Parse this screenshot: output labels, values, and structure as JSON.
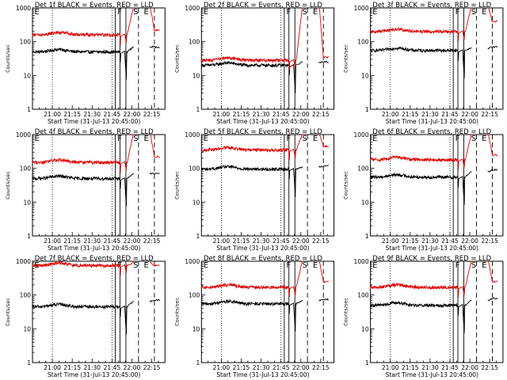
{
  "colors": {
    "events": "#000000",
    "lld": "#e00000",
    "axes": "#000000"
  },
  "chart_data": [
    {
      "type": "line",
      "title": "Det 1f BLACK = Events, RED = LLD",
      "xlabel": "Start Time (31-Jul-13 20:45:00)",
      "ylabel": "Counts/sec",
      "yscale": "log",
      "ylim": [
        1,
        1000
      ],
      "ytick_labels": [
        "1",
        "10",
        "100",
        "1000"
      ],
      "xtick_labels": [
        "21:00",
        "21:15",
        "21:30",
        "21:45",
        "22:00",
        "22:15"
      ],
      "markers": [
        "E",
        "F",
        "S",
        "E"
      ],
      "series": [
        {
          "name": "Events",
          "level": 50,
          "ramp_level": 70,
          "recover_level": 70
        },
        {
          "name": "LLD",
          "level": 160,
          "ramp_level": 1000,
          "recover_level": 220
        }
      ]
    },
    {
      "type": "line",
      "title": "Det 2f BLACK = Events, RED = LLD",
      "xlabel": "Start Time (31-Jul-13 20:45:00)",
      "ylabel": "Counts/sec",
      "yscale": "log",
      "ylim": [
        1,
        1000
      ],
      "ytick_labels": [
        "1",
        "10",
        "100",
        "1000"
      ],
      "xtick_labels": [
        "21:00",
        "21:15",
        "21:30",
        "21:45",
        "22:00",
        "22:15"
      ],
      "markers": [
        "E",
        "F",
        "S",
        "E"
      ],
      "series": [
        {
          "name": "Events",
          "level": 20,
          "ramp_level": 25,
          "recover_level": 25
        },
        {
          "name": "LLD",
          "level": 28,
          "ramp_level": 1000,
          "recover_level": 35
        }
      ]
    },
    {
      "type": "line",
      "title": "Det 3f BLACK = Events, RED = LLD",
      "xlabel": "Start Time (31-Jul-13 20:45:00)",
      "ylabel": "Counts/sec",
      "yscale": "log",
      "ylim": [
        1,
        1000
      ],
      "ytick_labels": [
        "1",
        "10",
        "100",
        "1000"
      ],
      "xtick_labels": [
        "21:00",
        "21:15",
        "21:30",
        "21:45",
        "22:00",
        "22:15"
      ],
      "markers": [
        "E",
        "F",
        "S",
        "E"
      ],
      "series": [
        {
          "name": "Events",
          "level": 55,
          "ramp_level": 65,
          "recover_level": 70
        },
        {
          "name": "LLD",
          "level": 200,
          "ramp_level": 1000,
          "recover_level": 400
        }
      ]
    },
    {
      "type": "line",
      "title": "Det 4f BLACK = Events, RED = LLD",
      "xlabel": "Start Time (31-Jul-13 20:45:00)",
      "ylabel": "Counts/sec",
      "yscale": "log",
      "ylim": [
        1,
        1000
      ],
      "ytick_labels": [
        "1",
        "10",
        "100",
        "1000"
      ],
      "xtick_labels": [
        "21:00",
        "21:15",
        "21:30",
        "21:45",
        "22:00",
        "22:15"
      ],
      "markers": [
        "E",
        "F",
        "S",
        "E"
      ],
      "series": [
        {
          "name": "Events",
          "level": 50,
          "ramp_level": 70,
          "recover_level": 70
        },
        {
          "name": "LLD",
          "level": 150,
          "ramp_level": 1000,
          "recover_level": 220
        }
      ]
    },
    {
      "type": "line",
      "title": "Det 5f BLACK = Events, RED = LLD",
      "xlabel": "Start Time (31-Jul-13 20:45:00)",
      "ylabel": "Counts/sec",
      "yscale": "log",
      "ylim": [
        1,
        1000
      ],
      "ytick_labels": [
        "1",
        "10",
        "100",
        "1000"
      ],
      "xtick_labels": [
        "21:00",
        "21:15",
        "21:30",
        "21:45",
        "22:00",
        "22:15"
      ],
      "markers": [
        "E",
        "F",
        "S",
        "E"
      ],
      "series": [
        {
          "name": "Events",
          "level": 95,
          "ramp_level": 110,
          "recover_level": 120
        },
        {
          "name": "LLD",
          "level": 350,
          "ramp_level": 1000,
          "recover_level": 450
        }
      ]
    },
    {
      "type": "line",
      "title": "Det 6f BLACK = Events, RED = LLD",
      "xlabel": "Start Time (31-Jul-13 20:45:00)",
      "ylabel": "Counts/sec",
      "yscale": "log",
      "ylim": [
        1,
        1000
      ],
      "ytick_labels": [
        "1",
        "10",
        "100",
        "1000"
      ],
      "xtick_labels": [
        "21:00",
        "21:15",
        "21:30",
        "21:45",
        "22:00",
        "22:15"
      ],
      "markers": [
        "E",
        "F",
        "S",
        "E"
      ],
      "series": [
        {
          "name": "Events",
          "level": 55,
          "ramp_level": 80,
          "recover_level": 90
        },
        {
          "name": "LLD",
          "level": 180,
          "ramp_level": 1000,
          "recover_level": 250
        }
      ]
    },
    {
      "type": "line",
      "title": "Det 7f BLACK = Events, RED = LLD",
      "xlabel": "Start Time (31-Jul-13 20:45:00)",
      "ylabel": "Counts/sec",
      "yscale": "log",
      "ylim": [
        1,
        1000
      ],
      "ytick_labels": [
        "1",
        "10",
        "100",
        "1000"
      ],
      "xtick_labels": [
        "21:00",
        "21:15",
        "21:30",
        "21:45",
        "22:00",
        "22:15"
      ],
      "markers": [
        "E",
        "F",
        "S",
        "E"
      ],
      "series": [
        {
          "name": "Events",
          "level": 45,
          "ramp_level": 65,
          "recover_level": 70
        },
        {
          "name": "LLD",
          "level": 750,
          "ramp_level": 900,
          "recover_level": 750
        }
      ]
    },
    {
      "type": "line",
      "title": "Det 8f BLACK = Events, RED = LLD",
      "xlabel": "Start Time (31-Jul-13 20:45:00)",
      "ylabel": "Counts/sec",
      "yscale": "log",
      "ylim": [
        1,
        1000
      ],
      "ytick_labels": [
        "1",
        "10",
        "100",
        "1000"
      ],
      "xtick_labels": [
        "21:00",
        "21:15",
        "21:30",
        "21:45",
        "22:00",
        "22:15"
      ],
      "markers": [
        "E",
        "F",
        "S",
        "E"
      ],
      "series": [
        {
          "name": "Events",
          "level": 55,
          "ramp_level": 70,
          "recover_level": 75
        },
        {
          "name": "LLD",
          "level": 170,
          "ramp_level": 1000,
          "recover_level": 250
        }
      ]
    },
    {
      "type": "line",
      "title": "Det 9f BLACK = Events, RED = LLD",
      "xlabel": "Start Time (31-Jul-13 20:45:00)",
      "ylabel": "Counts/sec",
      "yscale": "log",
      "ylim": [
        1,
        1000
      ],
      "ytick_labels": [
        "1",
        "10",
        "100",
        "1000"
      ],
      "xtick_labels": [
        "21:00",
        "21:15",
        "21:30",
        "21:45",
        "22:00",
        "22:15"
      ],
      "markers": [
        "E",
        "F",
        "S",
        "E"
      ],
      "series": [
        {
          "name": "Events",
          "level": 50,
          "ramp_level": 70,
          "recover_level": 80
        },
        {
          "name": "LLD",
          "level": 170,
          "ramp_level": 1000,
          "recover_level": 250
        }
      ]
    }
  ]
}
